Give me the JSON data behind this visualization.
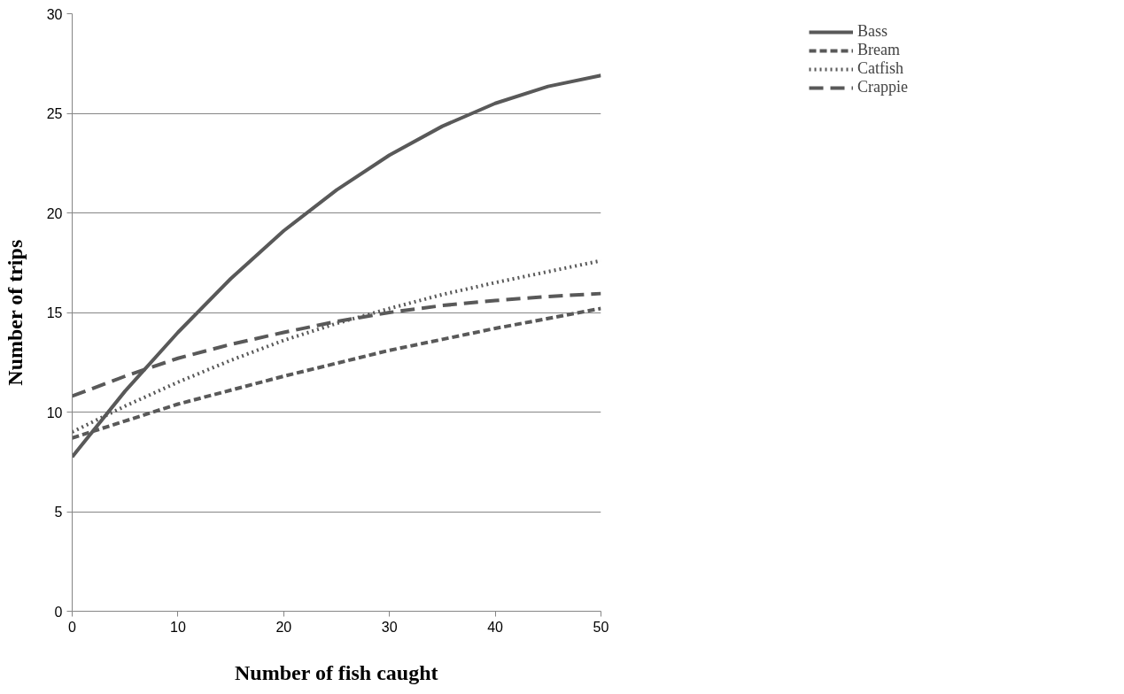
{
  "chart_data": {
    "type": "line",
    "xlabel": "Number of fish caught",
    "ylabel": "Number of trips",
    "x": [
      0,
      5,
      10,
      15,
      20,
      25,
      30,
      35,
      40,
      45,
      50
    ],
    "series": [
      {
        "name": "Bass",
        "color": "#595959",
        "line_style": "solid",
        "values": [
          7.75,
          11.05,
          14.0,
          16.7,
          19.1,
          21.15,
          22.9,
          24.35,
          25.5,
          26.35,
          26.9
        ]
      },
      {
        "name": "Bream",
        "color": "#595959",
        "line_style": "dashed",
        "values": [
          8.7,
          9.55,
          10.4,
          11.1,
          11.8,
          12.45,
          13.1,
          13.65,
          14.2,
          14.7,
          15.2
        ]
      },
      {
        "name": "Catfish",
        "color": "#595959",
        "line_style": "dotted",
        "values": [
          9.0,
          10.3,
          11.5,
          12.6,
          13.6,
          14.45,
          15.2,
          15.9,
          16.5,
          17.05,
          17.6
        ]
      },
      {
        "name": "Crappie",
        "color": "#595959",
        "line_style": "longdash",
        "values": [
          10.8,
          11.8,
          12.7,
          13.4,
          14.0,
          14.55,
          15.0,
          15.35,
          15.6,
          15.8,
          15.95
        ]
      }
    ],
    "xlim": [
      0,
      50
    ],
    "xticks": [
      0,
      10,
      20,
      30,
      40,
      50
    ],
    "ylim": [
      0,
      30
    ],
    "yticks": [
      0,
      5,
      10,
      15,
      20,
      25,
      30
    ],
    "grid": "y",
    "legend": "top right",
    "marker": "none"
  }
}
